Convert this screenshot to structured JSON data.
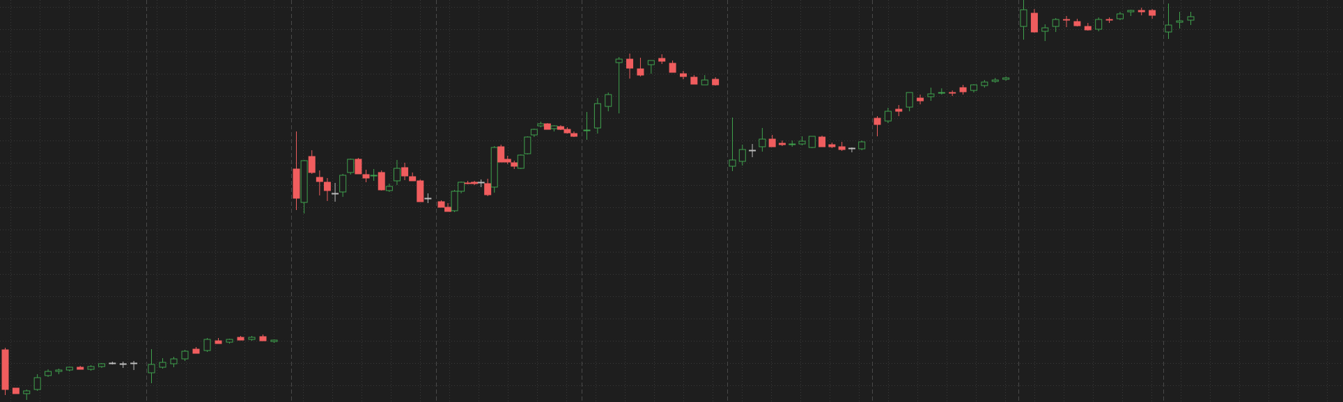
{
  "colors": {
    "background": "#1e1e1e",
    "grid_minor": "#3b3b3b",
    "grid_major": "#4a4a4a",
    "up": "#3fa34d",
    "down": "#f05d5e",
    "neutral": "#bdbdbd"
  },
  "chart_data": {
    "type": "candlestick",
    "title": "",
    "xlabel": "",
    "ylabel": "",
    "grid": true,
    "ylim": [
      0,
      578
    ],
    "session_count": 10,
    "candles": [
      {
        "s": 0,
        "o": 75,
        "h": 78,
        "l": 10,
        "c": 18,
        "d": "down"
      },
      {
        "s": 0,
        "o": 20,
        "h": 20,
        "l": 14,
        "c": 12,
        "d": "down"
      },
      {
        "s": 0,
        "o": 12,
        "h": 18,
        "l": 3,
        "c": 16,
        "d": "up"
      },
      {
        "s": 0,
        "o": 18,
        "h": 40,
        "l": 16,
        "c": 35,
        "d": "up"
      },
      {
        "s": 0,
        "o": 38,
        "h": 47,
        "l": 36,
        "c": 44,
        "d": "up"
      },
      {
        "s": 0,
        "o": 44,
        "h": 48,
        "l": 40,
        "c": 46,
        "d": "up"
      },
      {
        "s": 0,
        "o": 46,
        "h": 51,
        "l": 44,
        "c": 50,
        "d": "up"
      },
      {
        "s": 0,
        "o": 50,
        "h": 52,
        "l": 47,
        "c": 47,
        "d": "down"
      },
      {
        "s": 0,
        "o": 47,
        "h": 53,
        "l": 45,
        "c": 51,
        "d": "up"
      },
      {
        "s": 0,
        "o": 51,
        "h": 56,
        "l": 49,
        "c": 55,
        "d": "up"
      },
      {
        "s": 0,
        "o": 56,
        "h": 58,
        "l": 54,
        "c": 56,
        "d": "neutral"
      },
      {
        "s": 0,
        "o": 55,
        "h": 58,
        "l": 49,
        "c": 55,
        "d": "neutral"
      },
      {
        "s": 0,
        "o": 56,
        "h": 59,
        "l": 46,
        "c": 56,
        "d": "neutral"
      },
      {
        "s": 1,
        "o": 42,
        "h": 76,
        "l": 27,
        "c": 54,
        "d": "up"
      },
      {
        "s": 1,
        "o": 50,
        "h": 63,
        "l": 48,
        "c": 57,
        "d": "up"
      },
      {
        "s": 1,
        "o": 55,
        "h": 65,
        "l": 50,
        "c": 62,
        "d": "up"
      },
      {
        "s": 1,
        "o": 62,
        "h": 75,
        "l": 59,
        "c": 73,
        "d": "up"
      },
      {
        "s": 1,
        "o": 76,
        "h": 79,
        "l": 74,
        "c": 70,
        "d": "down"
      },
      {
        "s": 1,
        "o": 74,
        "h": 92,
        "l": 72,
        "c": 90,
        "d": "up"
      },
      {
        "s": 1,
        "o": 88,
        "h": 92,
        "l": 86,
        "c": 84,
        "d": "down"
      },
      {
        "s": 1,
        "o": 86,
        "h": 91,
        "l": 84,
        "c": 90,
        "d": "up"
      },
      {
        "s": 1,
        "o": 93,
        "h": 95,
        "l": 91,
        "c": 89,
        "d": "down"
      },
      {
        "s": 1,
        "o": 90,
        "h": 95,
        "l": 88,
        "c": 93,
        "d": "up"
      },
      {
        "s": 1,
        "o": 94,
        "h": 97,
        "l": 92,
        "c": 88,
        "d": "down"
      },
      {
        "s": 1,
        "o": 87,
        "h": 90,
        "l": 85,
        "c": 89,
        "d": "up"
      },
      {
        "s": 2,
        "o": 335,
        "h": 389,
        "l": 276,
        "c": 293,
        "d": "down"
      },
      {
        "s": 2,
        "o": 287,
        "h": 348,
        "l": 271,
        "c": 347,
        "d": "up"
      },
      {
        "s": 2,
        "o": 353,
        "h": 362,
        "l": 328,
        "c": 330,
        "d": "down"
      },
      {
        "s": 2,
        "o": 323,
        "h": 333,
        "l": 297,
        "c": 317,
        "d": "down"
      },
      {
        "s": 2,
        "o": 316,
        "h": 322,
        "l": 289,
        "c": 304,
        "d": "down"
      },
      {
        "s": 2,
        "o": 300,
        "h": 315,
        "l": 288,
        "c": 300,
        "d": "neutral"
      },
      {
        "s": 2,
        "o": 302,
        "h": 328,
        "l": 295,
        "c": 326,
        "d": "up"
      },
      {
        "s": 2,
        "o": 330,
        "h": 350,
        "l": 327,
        "c": 349,
        "d": "up"
      },
      {
        "s": 2,
        "o": 349,
        "h": 351,
        "l": 328,
        "c": 328,
        "d": "down"
      },
      {
        "s": 2,
        "o": 327,
        "h": 334,
        "l": 316,
        "c": 322,
        "d": "down"
      },
      {
        "s": 2,
        "o": 326,
        "h": 335,
        "l": 318,
        "c": 326,
        "d": "up"
      },
      {
        "s": 2,
        "o": 330,
        "h": 333,
        "l": 304,
        "c": 305,
        "d": "down"
      },
      {
        "s": 2,
        "o": 304,
        "h": 314,
        "l": 302,
        "c": 310,
        "d": "up"
      },
      {
        "s": 2,
        "o": 318,
        "h": 348,
        "l": 312,
        "c": 336,
        "d": "up"
      },
      {
        "s": 2,
        "o": 337,
        "h": 344,
        "l": 319,
        "c": 325,
        "d": "down"
      },
      {
        "s": 2,
        "o": 324,
        "h": 330,
        "l": 318,
        "c": 318,
        "d": "down"
      },
      {
        "s": 2,
        "o": 318,
        "h": 320,
        "l": 288,
        "c": 288,
        "d": "down"
      },
      {
        "s": 2,
        "o": 293,
        "h": 300,
        "l": 286,
        "c": 293,
        "d": "neutral"
      },
      {
        "s": 3,
        "o": 288,
        "h": 290,
        "l": 283,
        "c": 280,
        "d": "down"
      },
      {
        "s": 3,
        "o": 280,
        "h": 286,
        "l": 274,
        "c": 274,
        "d": "down"
      },
      {
        "s": 3,
        "o": 275,
        "h": 305,
        "l": 273,
        "c": 303,
        "d": "up"
      },
      {
        "s": 3,
        "o": 303,
        "h": 317,
        "l": 300,
        "c": 316,
        "d": "up"
      },
      {
        "s": 3,
        "o": 315,
        "h": 318,
        "l": 313,
        "c": 314,
        "d": "down"
      },
      {
        "s": 3,
        "o": 314,
        "h": 318,
        "l": 312,
        "c": 316,
        "d": "down"
      },
      {
        "s": 3,
        "o": 316,
        "h": 320,
        "l": 309,
        "c": 316,
        "d": "neutral"
      },
      {
        "s": 3,
        "o": 314,
        "h": 321,
        "l": 296,
        "c": 298,
        "d": "down"
      },
      {
        "s": 3,
        "o": 309,
        "h": 368,
        "l": 301,
        "c": 366,
        "d": "up"
      },
      {
        "s": 3,
        "o": 367,
        "h": 370,
        "l": 345,
        "c": 345,
        "d": "down"
      },
      {
        "s": 3,
        "o": 349,
        "h": 354,
        "l": 342,
        "c": 345,
        "d": "down"
      },
      {
        "s": 3,
        "o": 344,
        "h": 347,
        "l": 335,
        "c": 339,
        "d": "down"
      },
      {
        "s": 3,
        "o": 336,
        "h": 356,
        "l": 335,
        "c": 355,
        "d": "up"
      },
      {
        "s": 3,
        "o": 357,
        "h": 382,
        "l": 356,
        "c": 381,
        "d": "up"
      },
      {
        "s": 3,
        "o": 384,
        "h": 393,
        "l": 381,
        "c": 392,
        "d": "up"
      },
      {
        "s": 3,
        "o": 397,
        "h": 403,
        "l": 395,
        "c": 400,
        "d": "up"
      },
      {
        "s": 3,
        "o": 400,
        "h": 401,
        "l": 393,
        "c": 392,
        "d": "down"
      },
      {
        "s": 3,
        "o": 393,
        "h": 398,
        "l": 389,
        "c": 397,
        "d": "up"
      },
      {
        "s": 3,
        "o": 396,
        "h": 398,
        "l": 391,
        "c": 392,
        "d": "down"
      },
      {
        "s": 3,
        "o": 392,
        "h": 395,
        "l": 386,
        "c": 387,
        "d": "down"
      },
      {
        "s": 3,
        "o": 386,
        "h": 389,
        "l": 381,
        "c": 382,
        "d": "down"
      },
      {
        "s": 4,
        "o": 391,
        "h": 417,
        "l": 377,
        "c": 390,
        "d": "up"
      },
      {
        "s": 4,
        "o": 394,
        "h": 437,
        "l": 386,
        "c": 429,
        "d": "up"
      },
      {
        "s": 4,
        "o": 425,
        "h": 445,
        "l": 418,
        "c": 442,
        "d": "up"
      },
      {
        "s": 4,
        "o": 493,
        "h": 496,
        "l": 415,
        "c": 488,
        "d": "up"
      },
      {
        "s": 4,
        "o": 493,
        "h": 501,
        "l": 465,
        "c": 480,
        "d": "down"
      },
      {
        "s": 4,
        "o": 470,
        "h": 495,
        "l": 468,
        "c": 479,
        "d": "down"
      },
      {
        "s": 4,
        "o": 485,
        "h": 490,
        "l": 472,
        "c": 491,
        "d": "up"
      },
      {
        "s": 4,
        "o": 494,
        "h": 500,
        "l": 486,
        "c": 490,
        "d": "down"
      },
      {
        "s": 4,
        "o": 487,
        "h": 491,
        "l": 474,
        "c": 474,
        "d": "down"
      },
      {
        "s": 4,
        "o": 472,
        "h": 476,
        "l": 464,
        "c": 468,
        "d": "down"
      },
      {
        "s": 4,
        "o": 467,
        "h": 470,
        "l": 458,
        "c": 457,
        "d": "down"
      },
      {
        "s": 4,
        "o": 463,
        "h": 470,
        "l": 460,
        "c": 456,
        "d": "up"
      },
      {
        "s": 4,
        "o": 464,
        "h": 467,
        "l": 455,
        "c": 456,
        "d": "down"
      },
      {
        "s": 5,
        "o": 339,
        "h": 409,
        "l": 332,
        "c": 348,
        "d": "up"
      },
      {
        "s": 5,
        "o": 346,
        "h": 370,
        "l": 340,
        "c": 363,
        "d": "up"
      },
      {
        "s": 5,
        "o": 362,
        "h": 371,
        "l": 352,
        "c": 362,
        "d": "neutral"
      },
      {
        "s": 5,
        "o": 367,
        "h": 394,
        "l": 360,
        "c": 378,
        "d": "up"
      },
      {
        "s": 5,
        "o": 378,
        "h": 384,
        "l": 367,
        "c": 367,
        "d": "down"
      },
      {
        "s": 5,
        "o": 370,
        "h": 376,
        "l": 368,
        "c": 372,
        "d": "down"
      },
      {
        "s": 5,
        "o": 370,
        "h": 376,
        "l": 367,
        "c": 371,
        "d": "up"
      },
      {
        "s": 5,
        "o": 371,
        "h": 382,
        "l": 369,
        "c": 375,
        "d": "up"
      },
      {
        "s": 5,
        "o": 366,
        "h": 381,
        "l": 365,
        "c": 382,
        "d": "up"
      },
      {
        "s": 5,
        "o": 381,
        "h": 383,
        "l": 369,
        "c": 367,
        "d": "down"
      },
      {
        "s": 5,
        "o": 370,
        "h": 373,
        "l": 365,
        "c": 367,
        "d": "down"
      },
      {
        "s": 5,
        "o": 367,
        "h": 374,
        "l": 361,
        "c": 363,
        "d": "down"
      },
      {
        "s": 5,
        "o": 364,
        "h": 366,
        "l": 359,
        "c": 365,
        "d": "neutral"
      },
      {
        "s": 5,
        "o": 364,
        "h": 376,
        "l": 362,
        "c": 374,
        "d": "up"
      },
      {
        "s": 6,
        "o": 399,
        "h": 411,
        "l": 382,
        "c": 408,
        "d": "down"
      },
      {
        "s": 6,
        "o": 404,
        "h": 423,
        "l": 401,
        "c": 418,
        "d": "up"
      },
      {
        "s": 6,
        "o": 418,
        "h": 427,
        "l": 411,
        "c": 421,
        "d": "down"
      },
      {
        "s": 6,
        "o": 424,
        "h": 443,
        "l": 418,
        "c": 445,
        "d": "up"
      },
      {
        "s": 6,
        "o": 437,
        "h": 442,
        "l": 428,
        "c": 433,
        "d": "down"
      },
      {
        "s": 6,
        "o": 439,
        "h": 452,
        "l": 433,
        "c": 443,
        "d": "up"
      },
      {
        "s": 6,
        "o": 444,
        "h": 451,
        "l": 442,
        "c": 445,
        "d": "up"
      },
      {
        "s": 6,
        "o": 445,
        "h": 448,
        "l": 440,
        "c": 444,
        "d": "down"
      },
      {
        "s": 6,
        "o": 446,
        "h": 456,
        "l": 442,
        "c": 452,
        "d": "down"
      },
      {
        "s": 6,
        "o": 448,
        "h": 457,
        "l": 445,
        "c": 456,
        "d": "up"
      },
      {
        "s": 6,
        "o": 455,
        "h": 463,
        "l": 452,
        "c": 460,
        "d": "up"
      },
      {
        "s": 6,
        "o": 461,
        "h": 466,
        "l": 459,
        "c": 463,
        "d": "up"
      },
      {
        "s": 6,
        "o": 464,
        "h": 468,
        "l": 462,
        "c": 466,
        "d": "up"
      },
      {
        "s": 7,
        "o": 540,
        "h": 582,
        "l": 521,
        "c": 564,
        "d": "up"
      },
      {
        "s": 7,
        "o": 559,
        "h": 565,
        "l": 531,
        "c": 532,
        "d": "down"
      },
      {
        "s": 7,
        "o": 533,
        "h": 543,
        "l": 519,
        "c": 538,
        "d": "up"
      },
      {
        "s": 7,
        "o": 540,
        "h": 552,
        "l": 532,
        "c": 550,
        "d": "up"
      },
      {
        "s": 7,
        "o": 549,
        "h": 555,
        "l": 539,
        "c": 550,
        "d": "down"
      },
      {
        "s": 7,
        "o": 547,
        "h": 551,
        "l": 540,
        "c": 541,
        "d": "down"
      },
      {
        "s": 7,
        "o": 540,
        "h": 545,
        "l": 534,
        "c": 535,
        "d": "down"
      },
      {
        "s": 7,
        "o": 536,
        "h": 553,
        "l": 533,
        "c": 550,
        "d": "up"
      },
      {
        "s": 7,
        "o": 549,
        "h": 553,
        "l": 545,
        "c": 550,
        "d": "down"
      },
      {
        "s": 7,
        "o": 551,
        "h": 561,
        "l": 549,
        "c": 558,
        "d": "up"
      },
      {
        "s": 7,
        "o": 561,
        "h": 564,
        "l": 555,
        "c": 563,
        "d": "up"
      },
      {
        "s": 7,
        "o": 563,
        "h": 567,
        "l": 556,
        "c": 561,
        "d": "down"
      },
      {
        "s": 7,
        "o": 563,
        "h": 565,
        "l": 551,
        "c": 556,
        "d": "down"
      },
      {
        "s": 8,
        "o": 532,
        "h": 573,
        "l": 522,
        "c": 542,
        "d": "up"
      },
      {
        "s": 8,
        "o": 546,
        "h": 561,
        "l": 537,
        "c": 548,
        "d": "up"
      },
      {
        "s": 8,
        "o": 549,
        "h": 561,
        "l": 542,
        "c": 554,
        "d": "up"
      }
    ]
  }
}
